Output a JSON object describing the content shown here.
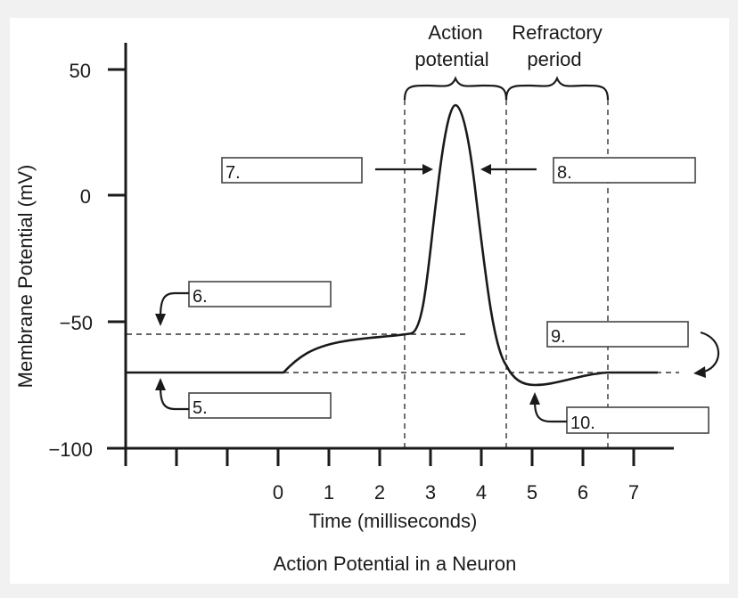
{
  "title": "Action Potential in a Neuron",
  "y_axis": {
    "label": "Membrane Potential (mV)",
    "ticks": [
      "50",
      "0",
      "−50",
      "−100"
    ]
  },
  "x_axis": {
    "label": "Time (milliseconds)",
    "ticks": [
      "0",
      "1",
      "2",
      "3",
      "4",
      "5",
      "6",
      "7"
    ]
  },
  "phases": {
    "action_potential": [
      "Action",
      "potential"
    ],
    "refractory_period": [
      "Refractory",
      "period"
    ]
  },
  "boxes": {
    "b5": "5.",
    "b6": "6.",
    "b7": "7.",
    "b8": "8.",
    "b9": "9.",
    "b10": "10."
  },
  "reference_levels_mV": {
    "threshold": -55,
    "resting": -70
  },
  "peak_mV": 35,
  "colors": {
    "line": "#1a1a1a",
    "background": "#f1f1f1",
    "panel": "#ffffff"
  }
}
